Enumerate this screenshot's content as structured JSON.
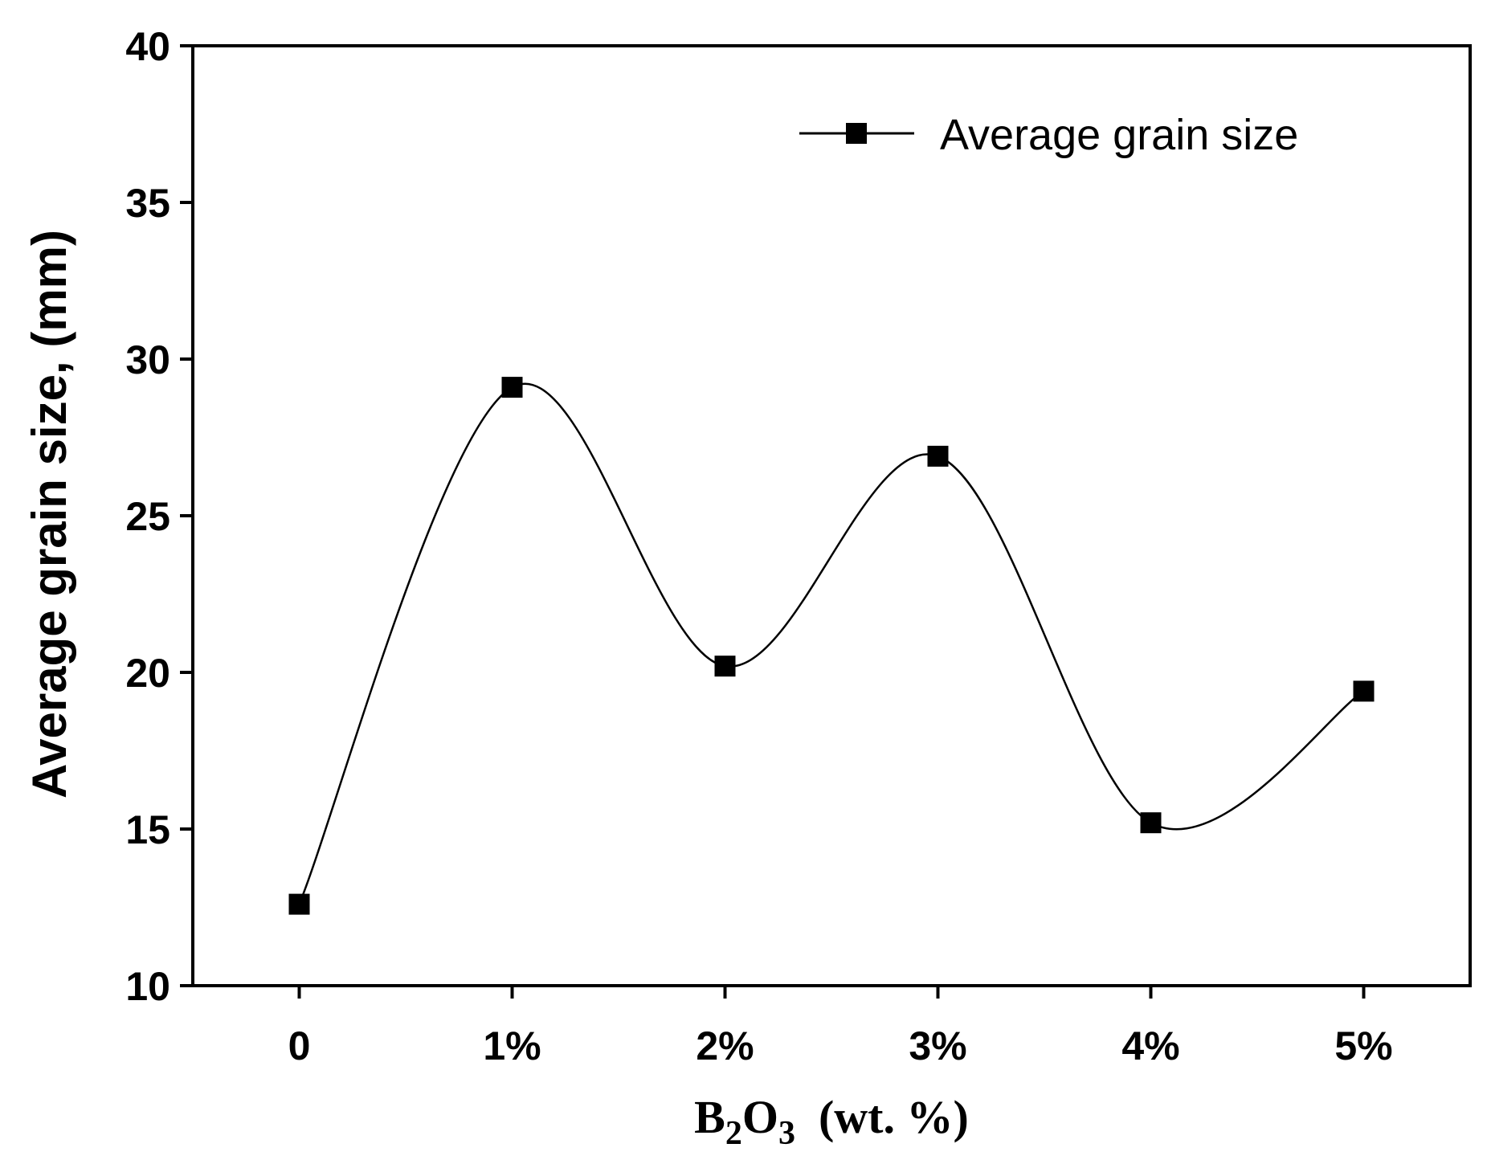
{
  "chart_data": {
    "type": "line",
    "title": "",
    "categories": [
      "0",
      "1%",
      "2%",
      "3%",
      "4%",
      "5%"
    ],
    "x": [
      0,
      1,
      2,
      3,
      4,
      5
    ],
    "series": [
      {
        "name": "Average grain size",
        "values": [
          12.6,
          29.1,
          20.2,
          26.9,
          15.2,
          19.4
        ]
      }
    ],
    "xlabel": {
      "base": "B",
      "sub1": "2",
      "mid": "O",
      "sub2": "3",
      "rest": "  (wt. %)"
    },
    "ylabel": "Average grain size, (mm)",
    "ylim": [
      10,
      40
    ],
    "xlim": [
      -0.5,
      5.5
    ],
    "yticks": [
      "10",
      "15",
      "20",
      "25",
      "30",
      "35",
      "40"
    ],
    "grid": false,
    "legend_position": "top-right",
    "smooth_curve": true,
    "marker": "square",
    "colors": {
      "line": "#000000",
      "marker": "#000000",
      "axis": "#000000"
    }
  }
}
